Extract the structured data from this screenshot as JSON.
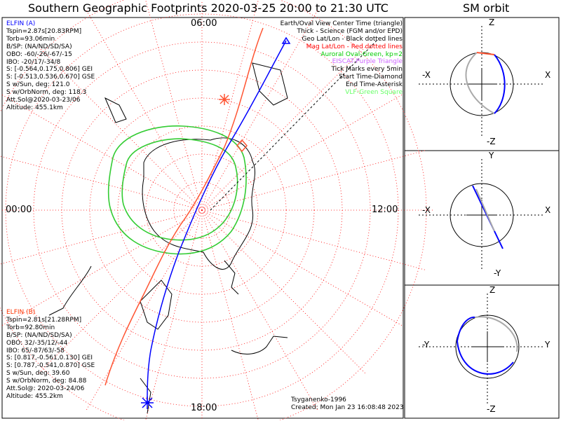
{
  "title": "Southern Geographic Footprints 2020-03-25 20:00 to 21:30 UTC",
  "sm_title": "SM orbit",
  "hour_labels": {
    "top": "06:00",
    "left": "00:00",
    "right": "12:00",
    "bottom": "18:00"
  },
  "elfin_a": {
    "header": "ELFIN (A)",
    "lines": [
      "Tspin=2.87s[20.83RPM]",
      "Torb=93.06min",
      "B/SP: (NA/ND/SD/SA)",
      "OBO: -60/-26/-67/-15",
      "IBO: -20/17/-34/8",
      "S: [-0.564,0.175,0.806] GEI",
      "S: [-0.513,0.536,0.670] GSE",
      "S w/Sun, deg: 121.0",
      "S w/OrbNorm, deg: 118.3",
      "Att.Sol@2020-03-23/06",
      "Altitude: 455.1km"
    ],
    "color": "#0000ff"
  },
  "elfin_b": {
    "header": "ELFIN (B)",
    "lines": [
      "Tspin=2.81s[21.28RPM]",
      "Torb=92.80min",
      "B/SP: (NA/ND/SD/SA)",
      "OBO: 32/-35/12/-44",
      "IBO: 65/-87/63/-58",
      "S: [0.817,-0.561,0.130] GEI",
      "S: [0.787,-0.541,0.870] GSE",
      "S w/Sun, deg: 39.60",
      "S w/OrbNorm, deg: 84.88",
      "Att.Sol@: 2020-03-24/06",
      "Altitude: 455.2km"
    ],
    "color": "#ff5533"
  },
  "legend": [
    {
      "text": "Earth/Oval View Center Time (triangle)",
      "color": "#000000"
    },
    {
      "text": "Thick - Science (FGM and/or EPD)",
      "color": "#000000"
    },
    {
      "text": "Geo Lat/Lon - Black dotted lines",
      "color": "#000000"
    },
    {
      "text": "Mag Lat/Lon - Red dotted lines",
      "color": "#ff0000"
    },
    {
      "text": "Auroral Oval-Green, kp=2",
      "color": "#00cc00"
    },
    {
      "text": "EISCAT-Purple Triangle",
      "color": "#cc66ff"
    },
    {
      "text": "Tick Marks every 5min",
      "color": "#000000"
    },
    {
      "text": "Start Time-Diamond",
      "color": "#000000"
    },
    {
      "text": "End Time-Asterisk",
      "color": "#000000"
    },
    {
      "text": "VLF-Green Square",
      "color": "#66ff66"
    }
  ],
  "footer": {
    "credit": "Tsyganenko-1996",
    "created": "Created: Mon Jan 23 16:08:48 2023"
  },
  "sm_panels": [
    {
      "top": "Z",
      "bottom": "-Z",
      "left": "-X",
      "right": "X"
    },
    {
      "top": "Y",
      "bottom": "-Y",
      "left": "-X",
      "right": "X"
    },
    {
      "top": "Z",
      "bottom": "-Z",
      "left": "-Y",
      "right": "Y"
    }
  ],
  "colors": {
    "elfin_a": "#0000ff",
    "elfin_b": "#ff5533",
    "oval": "#33cc33",
    "grid_mag": "#ff0000",
    "orbit_gray": "#aaaaaa"
  }
}
